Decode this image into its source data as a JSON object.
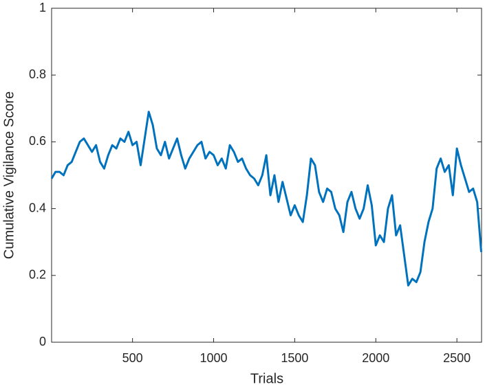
{
  "chart_data": {
    "type": "line",
    "xlabel": "Trials",
    "ylabel": "Cumulative Vigilance Score",
    "x": [
      1,
      25,
      50,
      75,
      100,
      125,
      150,
      175,
      200,
      225,
      250,
      275,
      300,
      325,
      350,
      375,
      400,
      425,
      450,
      475,
      500,
      525,
      550,
      575,
      600,
      625,
      650,
      675,
      700,
      725,
      750,
      775,
      800,
      825,
      850,
      875,
      900,
      925,
      950,
      975,
      1000,
      1025,
      1050,
      1075,
      1100,
      1125,
      1150,
      1175,
      1200,
      1225,
      1250,
      1275,
      1300,
      1325,
      1350,
      1375,
      1400,
      1425,
      1450,
      1475,
      1500,
      1525,
      1550,
      1575,
      1600,
      1625,
      1650,
      1675,
      1700,
      1725,
      1750,
      1775,
      1800,
      1825,
      1850,
      1875,
      1900,
      1925,
      1950,
      1975,
      2000,
      2025,
      2050,
      2075,
      2100,
      2125,
      2150,
      2175,
      2200,
      2225,
      2250,
      2275,
      2300,
      2325,
      2350,
      2375,
      2400,
      2425,
      2450,
      2475,
      2500,
      2525,
      2550,
      2575,
      2600,
      2625,
      2650
    ],
    "series": [
      {
        "color": "#0072bd",
        "values": [
          0.49,
          0.51,
          0.51,
          0.5,
          0.53,
          0.54,
          0.57,
          0.6,
          0.61,
          0.59,
          0.57,
          0.59,
          0.54,
          0.52,
          0.56,
          0.59,
          0.58,
          0.61,
          0.6,
          0.63,
          0.59,
          0.6,
          0.53,
          0.61,
          0.69,
          0.65,
          0.58,
          0.56,
          0.6,
          0.55,
          0.58,
          0.61,
          0.56,
          0.52,
          0.55,
          0.57,
          0.59,
          0.6,
          0.55,
          0.57,
          0.56,
          0.53,
          0.55,
          0.52,
          0.59,
          0.57,
          0.54,
          0.55,
          0.52,
          0.5,
          0.49,
          0.47,
          0.5,
          0.56,
          0.44,
          0.5,
          0.42,
          0.48,
          0.43,
          0.38,
          0.41,
          0.38,
          0.36,
          0.44,
          0.55,
          0.53,
          0.45,
          0.42,
          0.46,
          0.45,
          0.4,
          0.38,
          0.33,
          0.42,
          0.45,
          0.4,
          0.37,
          0.4,
          0.47,
          0.41,
          0.29,
          0.32,
          0.3,
          0.4,
          0.44,
          0.32,
          0.35,
          0.26,
          0.17,
          0.19,
          0.18,
          0.21,
          0.3,
          0.36,
          0.4,
          0.52,
          0.55,
          0.51,
          0.53,
          0.44,
          0.58,
          0.53,
          0.49,
          0.45,
          0.46,
          0.42,
          0.27
        ]
      }
    ],
    "xlim": [
      1,
      2652
    ],
    "xticks": [
      500,
      1000,
      1500,
      2000,
      2500
    ],
    "ylim": [
      0,
      1
    ],
    "yticks": [
      0,
      0.2,
      0.4,
      0.6,
      0.8,
      1
    ]
  }
}
